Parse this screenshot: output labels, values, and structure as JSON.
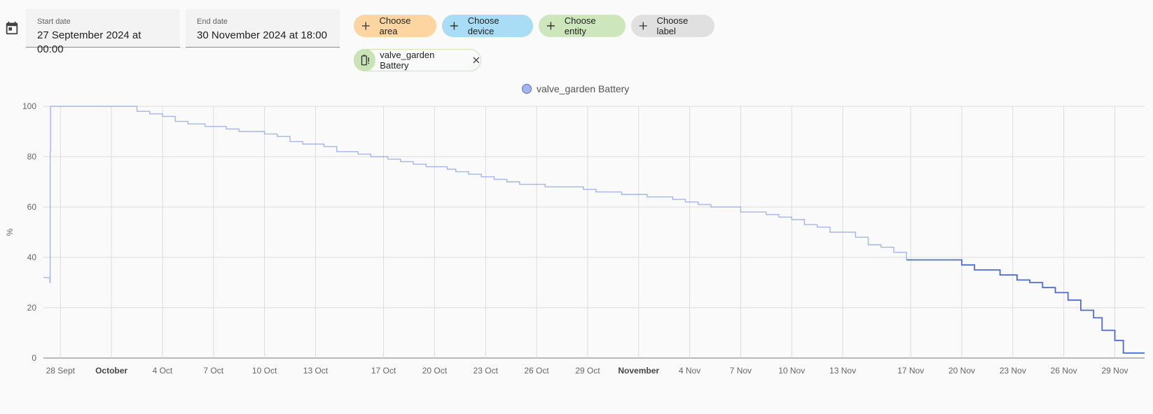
{
  "date_range": {
    "start_label": "Start date",
    "start_value": "27 September 2024 at 00:00",
    "end_label": "End date",
    "end_value": "30 November 2024 at 18:00"
  },
  "target_picker": {
    "choose_area": "Choose area",
    "choose_device": "Choose device",
    "choose_entity": "Choose entity",
    "choose_label": "Choose label",
    "area_color": "#fdd5a1",
    "device_color": "#a9dcf5",
    "entity_color": "#cde6bb",
    "label_color": "#e0e0e0"
  },
  "selected_entities": [
    {
      "label": "valve_garden Battery",
      "icon": "battery-alert-icon"
    }
  ],
  "chart_data": {
    "type": "line",
    "title": "",
    "ylabel": "%",
    "xlabel": "",
    "legend": [
      "valve_garden Battery"
    ],
    "legend_position": "top-center",
    "grid": true,
    "ylim": [
      0,
      100
    ],
    "yticks": [
      0,
      20,
      40,
      60,
      80,
      100
    ],
    "xlim": [
      "2024-09-27T00:00",
      "2024-11-30T18:00"
    ],
    "xticks": [
      {
        "label": "28 Sept",
        "date": "2024-09-28",
        "bold": false
      },
      {
        "label": "October",
        "date": "2024-10-01",
        "bold": true
      },
      {
        "label": "4 Oct",
        "date": "2024-10-04",
        "bold": false
      },
      {
        "label": "7 Oct",
        "date": "2024-10-07",
        "bold": false
      },
      {
        "label": "10 Oct",
        "date": "2024-10-10",
        "bold": false
      },
      {
        "label": "13 Oct",
        "date": "2024-10-13",
        "bold": false
      },
      {
        "label": "17 Oct",
        "date": "2024-10-17",
        "bold": false
      },
      {
        "label": "20 Oct",
        "date": "2024-10-20",
        "bold": false
      },
      {
        "label": "23 Oct",
        "date": "2024-10-23",
        "bold": false
      },
      {
        "label": "26 Oct",
        "date": "2024-10-26",
        "bold": false
      },
      {
        "label": "29 Oct",
        "date": "2024-10-29",
        "bold": false
      },
      {
        "label": "November",
        "date": "2024-11-01",
        "bold": true
      },
      {
        "label": "4 Nov",
        "date": "2024-11-04",
        "bold": false
      },
      {
        "label": "7 Nov",
        "date": "2024-11-07",
        "bold": false
      },
      {
        "label": "10 Nov",
        "date": "2024-11-10",
        "bold": false
      },
      {
        "label": "13 Nov",
        "date": "2024-11-13",
        "bold": false
      },
      {
        "label": "17 Nov",
        "date": "2024-11-17",
        "bold": false
      },
      {
        "label": "20 Nov",
        "date": "2024-11-20",
        "bold": false
      },
      {
        "label": "23 Nov",
        "date": "2024-11-23",
        "bold": false
      },
      {
        "label": "26 Nov",
        "date": "2024-11-26",
        "bold": false
      },
      {
        "label": "29 Nov",
        "date": "2024-11-29",
        "bold": false
      }
    ],
    "series": [
      {
        "name": "valve_garden Battery",
        "color": "#a4b6e8",
        "recent_color": "#4e6ccf",
        "recent_from": "2024-11-19T12:00",
        "step": true,
        "points": [
          [
            "2024-09-27T00:00",
            32
          ],
          [
            "2024-09-27T09:00",
            30
          ],
          [
            "2024-09-27T09:30",
            82
          ],
          [
            "2024-09-27T10:00",
            100
          ],
          [
            "2024-10-02T12:00",
            98
          ],
          [
            "2024-10-03T06:00",
            97
          ],
          [
            "2024-10-04T00:00",
            96
          ],
          [
            "2024-10-04T18:00",
            94
          ],
          [
            "2024-10-05T12:00",
            93
          ],
          [
            "2024-10-06T12:00",
            92
          ],
          [
            "2024-10-07T18:00",
            91
          ],
          [
            "2024-10-08T12:00",
            90
          ],
          [
            "2024-10-10T00:00",
            89
          ],
          [
            "2024-10-10T18:00",
            88
          ],
          [
            "2024-10-11T12:00",
            86
          ],
          [
            "2024-10-12T06:00",
            85
          ],
          [
            "2024-10-13T12:00",
            84
          ],
          [
            "2024-10-14T06:00",
            82
          ],
          [
            "2024-10-15T12:00",
            81
          ],
          [
            "2024-10-16T06:00",
            80
          ],
          [
            "2024-10-17T06:00",
            79
          ],
          [
            "2024-10-18T00:00",
            78
          ],
          [
            "2024-10-18T18:00",
            77
          ],
          [
            "2024-10-19T12:00",
            76
          ],
          [
            "2024-10-20T18:00",
            75
          ],
          [
            "2024-10-21T06:00",
            74
          ],
          [
            "2024-10-22T00:00",
            73
          ],
          [
            "2024-10-22T18:00",
            72
          ],
          [
            "2024-10-23T12:00",
            71
          ],
          [
            "2024-10-24T06:00",
            70
          ],
          [
            "2024-10-25T00:00",
            69
          ],
          [
            "2024-10-26T12:00",
            68
          ],
          [
            "2024-10-28T18:00",
            67
          ],
          [
            "2024-10-29T12:00",
            66
          ],
          [
            "2024-10-31T00:00",
            65
          ],
          [
            "2024-11-01T12:00",
            64
          ],
          [
            "2024-11-03T00:00",
            63
          ],
          [
            "2024-11-03T18:00",
            62
          ],
          [
            "2024-11-04T12:00",
            61
          ],
          [
            "2024-11-05T06:00",
            60
          ],
          [
            "2024-11-07T00:00",
            58
          ],
          [
            "2024-11-08T12:00",
            57
          ],
          [
            "2024-11-09T06:00",
            56
          ],
          [
            "2024-11-10T00:00",
            55
          ],
          [
            "2024-11-10T18:00",
            53
          ],
          [
            "2024-11-11T12:00",
            52
          ],
          [
            "2024-11-12T06:00",
            50
          ],
          [
            "2024-11-13T18:00",
            48
          ],
          [
            "2024-11-14T12:00",
            45
          ],
          [
            "2024-11-15T06:00",
            44
          ],
          [
            "2024-11-16T00:00",
            42
          ],
          [
            "2024-11-16T18:00",
            39
          ],
          [
            "2024-11-19T12:00",
            39
          ],
          [
            "2024-11-20T00:00",
            37
          ],
          [
            "2024-11-20T18:00",
            35
          ],
          [
            "2024-11-22T06:00",
            33
          ],
          [
            "2024-11-23T06:00",
            31
          ],
          [
            "2024-11-24T00:00",
            30
          ],
          [
            "2024-11-24T18:00",
            28
          ],
          [
            "2024-11-25T12:00",
            26
          ],
          [
            "2024-11-26T06:00",
            23
          ],
          [
            "2024-11-27T00:00",
            19
          ],
          [
            "2024-11-27T18:00",
            16
          ],
          [
            "2024-11-28T06:00",
            11
          ],
          [
            "2024-11-29T00:00",
            7
          ],
          [
            "2024-11-29T12:00",
            2
          ],
          [
            "2024-11-30T18:00",
            2
          ]
        ]
      }
    ]
  }
}
